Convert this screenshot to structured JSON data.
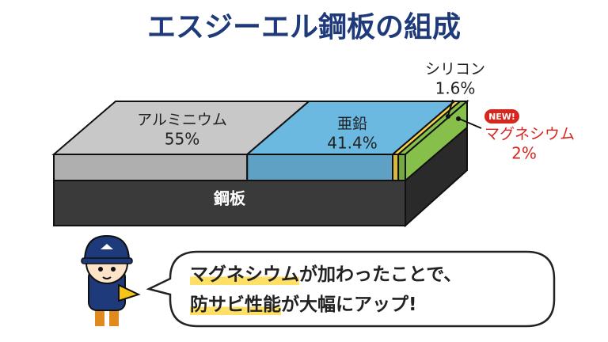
{
  "chart_data": {
    "type": "stacked-bar-3d",
    "title": "エスジーエル鋼板の組成",
    "base_label": "鋼板",
    "base_color": "#3a3a3a",
    "title_color": "#1f3a7a",
    "series": [
      {
        "name": "アルミニウム",
        "values": [
          55
        ],
        "value_labels": [
          "55%"
        ],
        "color": "#c8c8c8",
        "label_color": "#222222"
      },
      {
        "name": "亜鉛",
        "values": [
          41.4
        ],
        "value_labels": [
          "41.4%"
        ],
        "color": "#6bb8e0",
        "label_color": "#222222"
      },
      {
        "name": "シリコン",
        "values": [
          1.6
        ],
        "value_labels": [
          "1.6%"
        ],
        "color": "#f7d24a",
        "label_color": "#222222"
      },
      {
        "name": "マグネシウム",
        "values": [
          2
        ],
        "value_labels": [
          "2%"
        ],
        "color": "#86c04a",
        "label_color": "#d7261e",
        "badge": "NEW!"
      }
    ]
  },
  "speech": {
    "lines": [
      {
        "highlight": "マグネシウム",
        "rest": "が加わったことで、"
      },
      {
        "highlight": "防サビ性能",
        "rest": "が大幅にアップ!"
      }
    ]
  }
}
